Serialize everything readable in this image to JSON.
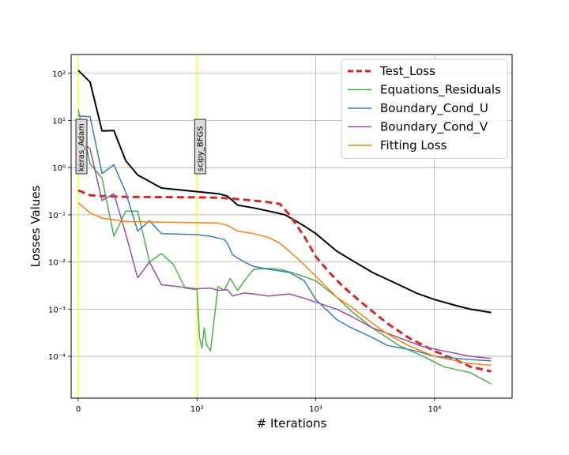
{
  "chart_data": {
    "type": "line",
    "xlabel": "# Iterations",
    "ylabel": "Losses Values",
    "x_scale": "symlog",
    "y_scale": "log",
    "xlim": [
      -6,
      45000
    ],
    "ylim": [
      1.3e-05,
      250
    ],
    "grid": true,
    "legend_position": "top-right",
    "x_ticks": [
      {
        "value": 0,
        "label": "0"
      },
      {
        "value": 100,
        "label": "10²"
      },
      {
        "value": 1000,
        "label": "10³"
      },
      {
        "value": 10000,
        "label": "10⁴"
      }
    ],
    "y_ticks": [
      {
        "value": 100,
        "label": "10²"
      },
      {
        "value": 10,
        "label": "10¹"
      },
      {
        "value": 1,
        "label": "10⁰"
      },
      {
        "value": 0.1,
        "label": "10⁻¹"
      },
      {
        "value": 0.01,
        "label": "10⁻²"
      },
      {
        "value": 0.001,
        "label": "10⁻³"
      },
      {
        "value": 0.0001,
        "label": "10⁻⁴"
      }
    ],
    "vlines": [
      {
        "x": 0,
        "label": "keras_Adam",
        "color": "#ffff00"
      },
      {
        "x": 100,
        "label": "scipy_BFGS",
        "color": "#ffff00"
      }
    ],
    "series": [
      {
        "name": "",
        "color": "#000000",
        "dash": "",
        "width": 2,
        "in_legend": false,
        "points": [
          [
            0,
            115
          ],
          [
            10,
            65
          ],
          [
            20,
            6
          ],
          [
            30,
            6.1
          ],
          [
            40,
            1.4
          ],
          [
            50,
            0.7
          ],
          [
            70,
            0.37
          ],
          [
            100,
            0.31
          ],
          [
            150,
            0.28
          ],
          [
            180,
            0.25
          ],
          [
            220,
            0.16
          ],
          [
            300,
            0.14
          ],
          [
            400,
            0.12
          ],
          [
            550,
            0.1
          ],
          [
            800,
            0.058
          ],
          [
            1000,
            0.04
          ],
          [
            1500,
            0.017
          ],
          [
            2000,
            0.011
          ],
          [
            3000,
            0.006
          ],
          [
            5000,
            0.0033
          ],
          [
            7000,
            0.0022
          ],
          [
            10000,
            0.0016
          ],
          [
            15000,
            0.0012
          ],
          [
            20000,
            0.001
          ],
          [
            30000,
            0.00085
          ]
        ]
      },
      {
        "name": "Test_Loss",
        "color": "#d62728",
        "dash": "9,5",
        "width": 3,
        "in_legend": true,
        "points": [
          [
            0,
            0.33
          ],
          [
            10,
            0.26
          ],
          [
            20,
            0.25
          ],
          [
            40,
            0.24
          ],
          [
            100,
            0.235
          ],
          [
            150,
            0.23
          ],
          [
            200,
            0.22
          ],
          [
            300,
            0.2
          ],
          [
            400,
            0.185
          ],
          [
            500,
            0.17
          ],
          [
            600,
            0.1
          ],
          [
            800,
            0.035
          ],
          [
            1000,
            0.013
          ],
          [
            1300,
            0.006
          ],
          [
            1700,
            0.003
          ],
          [
            2500,
            0.0013
          ],
          [
            4000,
            0.0005
          ],
          [
            6000,
            0.00025
          ],
          [
            10000,
            0.00013
          ],
          [
            15000,
            8.5e-05
          ],
          [
            20000,
            6e-05
          ],
          [
            30000,
            4.8e-05
          ]
        ]
      },
      {
        "name": "Equations_Residuals",
        "color": "#4daf4a",
        "dash": "",
        "width": 1.5,
        "in_legend": true,
        "points": [
          [
            0,
            17
          ],
          [
            10,
            1.2
          ],
          [
            20,
            0.6
          ],
          [
            30,
            0.035
          ],
          [
            40,
            0.12
          ],
          [
            50,
            0.12
          ],
          [
            60,
            0.01
          ],
          [
            70,
            0.015
          ],
          [
            80,
            0.009
          ],
          [
            90,
            0.0028
          ],
          [
            100,
            0.0026
          ],
          [
            105,
            0.00025
          ],
          [
            110,
            0.00015
          ],
          [
            115,
            0.0004
          ],
          [
            120,
            0.00018
          ],
          [
            130,
            0.00013
          ],
          [
            150,
            0.003
          ],
          [
            170,
            0.0025
          ],
          [
            190,
            0.0045
          ],
          [
            220,
            0.0025
          ],
          [
            260,
            0.0045
          ],
          [
            300,
            0.007
          ],
          [
            400,
            0.0073
          ],
          [
            500,
            0.007
          ],
          [
            700,
            0.0055
          ],
          [
            1000,
            0.004
          ],
          [
            1500,
            0.0018
          ],
          [
            2000,
            0.0009
          ],
          [
            3000,
            0.0004
          ],
          [
            5000,
            0.00017
          ],
          [
            8000,
            0.0001
          ],
          [
            12000,
            6e-05
          ],
          [
            20000,
            4.5e-05
          ],
          [
            30000,
            2.6e-05
          ]
        ]
      },
      {
        "name": "Boundary_Cond_U",
        "color": "#377eb8",
        "dash": "",
        "width": 1.5,
        "in_legend": true,
        "points": [
          [
            0,
            12.5
          ],
          [
            10,
            12
          ],
          [
            20,
            0.75
          ],
          [
            30,
            1.15
          ],
          [
            40,
            0.3
          ],
          [
            50,
            0.045
          ],
          [
            60,
            0.075
          ],
          [
            70,
            0.04
          ],
          [
            100,
            0.038
          ],
          [
            130,
            0.035
          ],
          [
            170,
            0.03
          ],
          [
            180,
            0.025
          ],
          [
            200,
            0.014
          ],
          [
            250,
            0.01
          ],
          [
            300,
            0.008
          ],
          [
            400,
            0.007
          ],
          [
            600,
            0.006
          ],
          [
            800,
            0.004
          ],
          [
            1000,
            0.0016
          ],
          [
            1500,
            0.0006
          ],
          [
            2000,
            0.0004
          ],
          [
            3000,
            0.00025
          ],
          [
            4000,
            0.00017
          ],
          [
            7000,
            0.00013
          ],
          [
            10000,
            0.0001
          ],
          [
            20000,
            8.5e-05
          ],
          [
            30000,
            8e-05
          ]
        ]
      },
      {
        "name": "Boundary_Cond_V",
        "color": "#984ea3",
        "dash": "",
        "width": 1.5,
        "in_legend": true,
        "points": [
          [
            0,
            4
          ],
          [
            10,
            2.5
          ],
          [
            20,
            0.2
          ],
          [
            30,
            0.28
          ],
          [
            40,
            0.04
          ],
          [
            50,
            0.0046
          ],
          [
            60,
            0.01
          ],
          [
            70,
            0.0033
          ],
          [
            100,
            0.0027
          ],
          [
            130,
            0.0028
          ],
          [
            150,
            0.0025
          ],
          [
            180,
            0.0026
          ],
          [
            200,
            0.0019
          ],
          [
            250,
            0.0022
          ],
          [
            300,
            0.0021
          ],
          [
            400,
            0.0019
          ],
          [
            600,
            0.0021
          ],
          [
            800,
            0.0017
          ],
          [
            1000,
            0.0014
          ],
          [
            1500,
            0.001
          ],
          [
            2000,
            0.0007
          ],
          [
            3000,
            0.0004
          ],
          [
            5000,
            0.00025
          ],
          [
            8000,
            0.00016
          ],
          [
            12000,
            0.00013
          ],
          [
            20000,
            0.0001
          ],
          [
            30000,
            9e-05
          ]
        ]
      },
      {
        "name": "Fitting Loss",
        "color": "#ff7f0e",
        "dash": "",
        "width": 1.5,
        "in_legend": true,
        "points": [
          [
            0,
            0.18
          ],
          [
            10,
            0.11
          ],
          [
            20,
            0.085
          ],
          [
            40,
            0.072
          ],
          [
            70,
            0.07
          ],
          [
            100,
            0.068
          ],
          [
            150,
            0.067
          ],
          [
            180,
            0.06
          ],
          [
            220,
            0.045
          ],
          [
            300,
            0.04
          ],
          [
            400,
            0.033
          ],
          [
            500,
            0.025
          ],
          [
            700,
            0.012
          ],
          [
            1000,
            0.005
          ],
          [
            1500,
            0.0018
          ],
          [
            2000,
            0.0011
          ],
          [
            3000,
            0.0005
          ],
          [
            4000,
            0.0003
          ],
          [
            6000,
            0.00017
          ],
          [
            10000,
            0.0001
          ],
          [
            20000,
            7e-05
          ],
          [
            30000,
            6.5e-05
          ]
        ]
      }
    ]
  }
}
